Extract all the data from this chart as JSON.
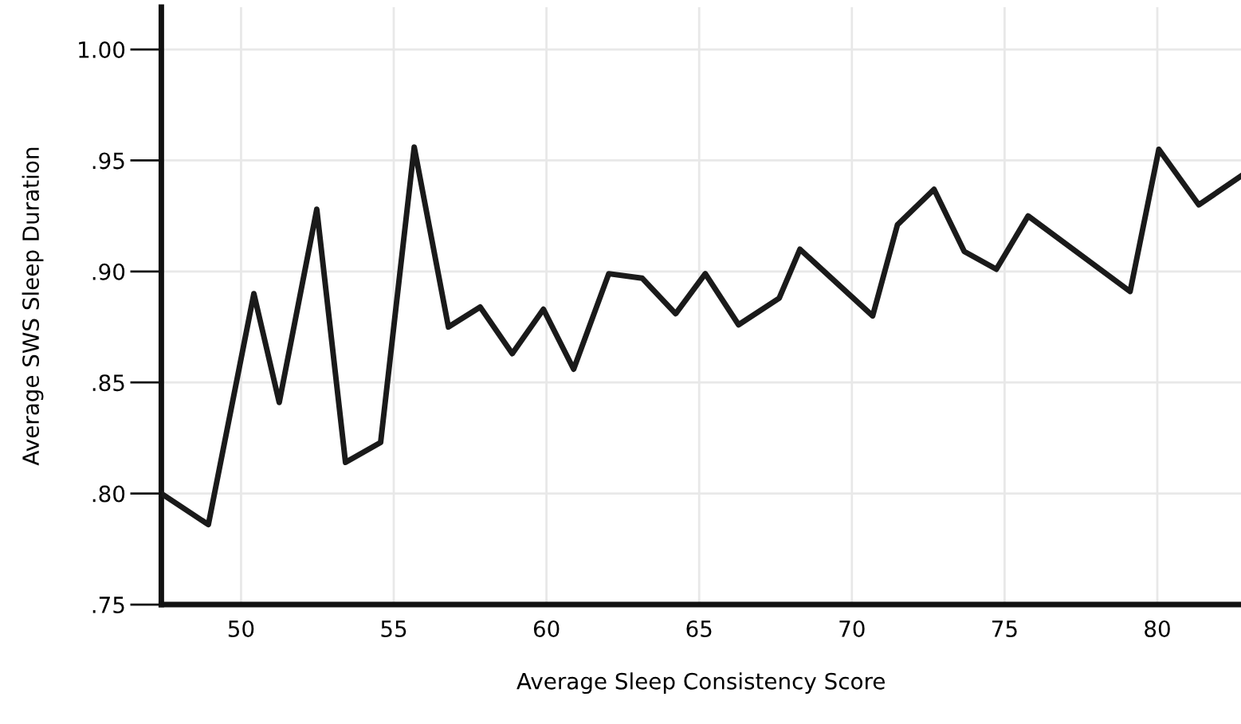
{
  "chart_data": {
    "type": "line",
    "xlabel": "Average Sleep Consistency Score",
    "ylabel": "Average SWS Sleep Duration",
    "x": [
      47.39,
      48.93,
      50.42,
      51.25,
      52.48,
      53.42,
      54.57,
      55.67,
      56.79,
      57.83,
      58.88,
      59.9,
      60.89,
      62.04,
      63.13,
      64.23,
      65.2,
      66.29,
      67.62,
      68.3,
      70.68,
      71.49,
      72.69,
      73.68,
      74.73,
      75.77,
      79.11,
      80.05,
      81.36,
      82.74
    ],
    "series": [
      {
        "color": "#1a1a1a",
        "values": [
          0.8,
          0.786,
          0.89,
          0.841,
          0.928,
          0.814,
          0.823,
          0.956,
          0.875,
          0.884,
          0.863,
          0.883,
          0.856,
          0.899,
          0.897,
          0.881,
          0.899,
          0.876,
          0.888,
          0.91,
          0.88,
          0.921,
          0.937,
          0.909,
          0.901,
          0.925,
          0.891,
          0.955,
          0.93,
          0.943
        ]
      }
    ],
    "xlim": [
      47.39,
      82.74
    ],
    "ylim": [
      0.75,
      1.019
    ],
    "xticks": [
      50,
      55,
      60,
      65,
      70,
      75,
      80
    ],
    "yticks": [
      {
        "value": 0.75,
        "label": ".75"
      },
      {
        "value": 0.8,
        "label": ".80"
      },
      {
        "value": 0.85,
        "label": ".85"
      },
      {
        "value": 0.9,
        "label": ".90"
      },
      {
        "value": 0.95,
        "label": ".95"
      },
      {
        "value": 1.0,
        "label": "1.00"
      }
    ],
    "grid": true,
    "marker": "none",
    "line_style": "solid"
  }
}
